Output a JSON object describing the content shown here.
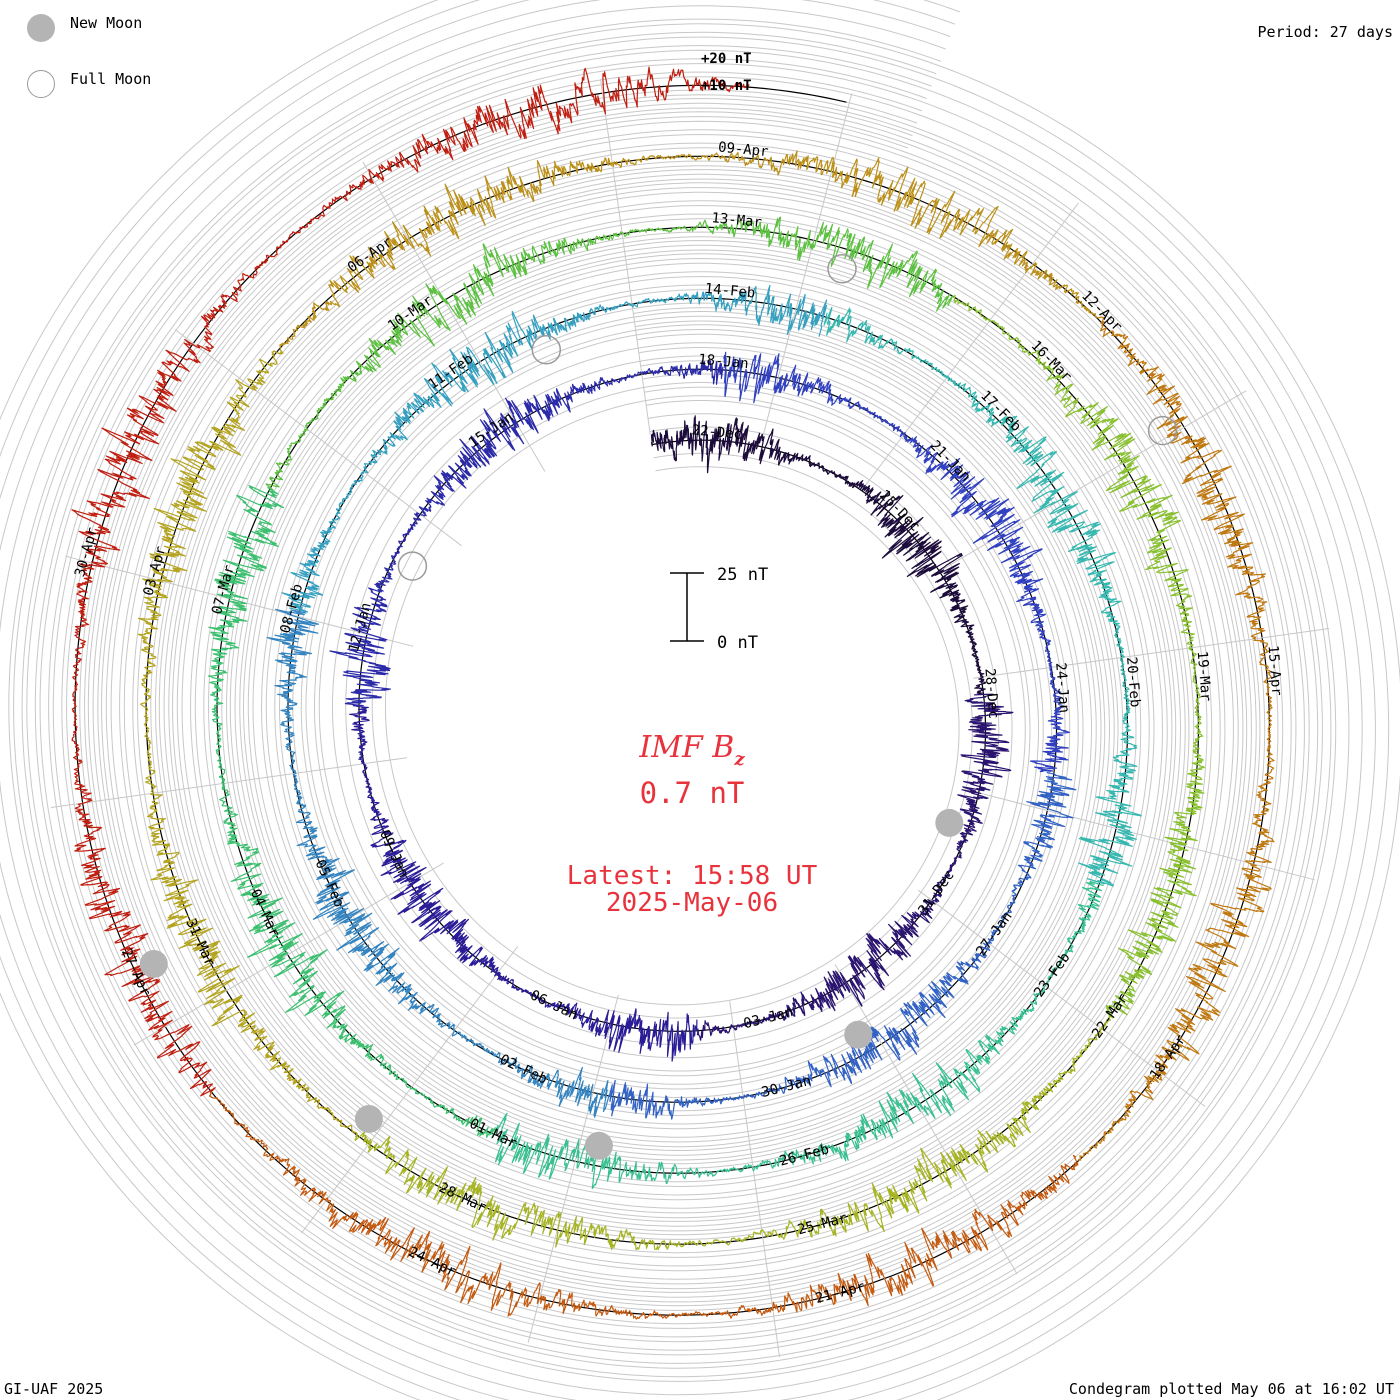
{
  "legend": {
    "new_moon": "New Moon",
    "full_moon": "Full Moon"
  },
  "period_label": "Period: 27 days",
  "credit": "GI-UAF 2025",
  "plotted": "Condegram plotted May 06 at 16:02 UT",
  "center": {
    "quantity": "IMF B",
    "subscript": "z",
    "value": "0.7 nT",
    "latest_line": "Latest: 15:58 UT",
    "latest_date": "2025-May-06",
    "text_color": "#e8323c"
  },
  "scale_bar": {
    "top_label": "25 nT",
    "bottom_label": "0 nT",
    "span_nT": 25
  },
  "outer_labels": [
    "+20 nT",
    "+10 nT"
  ],
  "chart_data": {
    "type": "line",
    "title": "IMF Bz",
    "period_days": 27,
    "start_date": "2024-12-21",
    "end_date": "2025-05-06",
    "units": "nT",
    "grid": true,
    "grid_step_nT": 10,
    "grid_rings_per_turn": 5,
    "spokes": 16,
    "date_labels": [
      {
        "turn": 0,
        "labels": [
          "22-Dec",
          "25-Dec",
          "28-Dec",
          "31-Dec",
          "03-Jan",
          "06-Jan",
          "09-Jan",
          "12-Jan",
          "15-Jan"
        ]
      },
      {
        "turn": 1,
        "labels": [
          "18-Jan",
          "21-Jan",
          "24-Jan",
          "27-Jan",
          "30-Jan",
          "02-Feb",
          "05-Feb",
          "08-Feb",
          "11-Feb"
        ]
      },
      {
        "turn": 2,
        "labels": [
          "14-Feb",
          "17-Feb",
          "20-Feb",
          "23-Feb",
          "26-Feb",
          "01-Mar",
          "04-Mar",
          "07-Mar",
          "10-Mar"
        ]
      },
      {
        "turn": 3,
        "labels": [
          "13-Mar",
          "16-Mar",
          "19-Mar",
          "22-Mar",
          "25-Mar",
          "28-Mar",
          "31-Mar",
          "03-Apr",
          "06-Apr"
        ]
      },
      {
        "turn": 4,
        "labels": [
          "09-Apr",
          "12-Apr",
          "15-Apr",
          "18-Apr",
          "21-Apr",
          "24-Apr",
          "27-Apr",
          "30-Apr"
        ]
      }
    ],
    "moon_phases": [
      {
        "phase": "new",
        "date": "2024-12-30"
      },
      {
        "phase": "full",
        "date": "2025-01-13"
      },
      {
        "phase": "new",
        "date": "2025-01-29"
      },
      {
        "phase": "full",
        "date": "2025-02-12"
      },
      {
        "phase": "new",
        "date": "2025-02-28"
      },
      {
        "phase": "full",
        "date": "2025-03-14"
      },
      {
        "phase": "new",
        "date": "2025-03-29"
      },
      {
        "phase": "full",
        "date": "2025-04-13"
      },
      {
        "phase": "new",
        "date": "2025-04-27"
      }
    ],
    "segments": [
      {
        "from": "2024-12-21",
        "to": "2024-12-28",
        "color": "#1c0c3c"
      },
      {
        "from": "2024-12-28",
        "to": "2025-01-04",
        "color": "#2a1470"
      },
      {
        "from": "2025-01-04",
        "to": "2025-01-11",
        "color": "#2a1c96"
      },
      {
        "from": "2025-01-11",
        "to": "2025-01-18",
        "color": "#2b2aa8"
      },
      {
        "from": "2025-01-18",
        "to": "2025-01-25",
        "color": "#3040c0"
      },
      {
        "from": "2025-01-25",
        "to": "2025-02-01",
        "color": "#3262c4"
      },
      {
        "from": "2025-02-01",
        "to": "2025-02-08",
        "color": "#3384c0"
      },
      {
        "from": "2025-02-08",
        "to": "2025-02-15",
        "color": "#35a0c0"
      },
      {
        "from": "2025-02-15",
        "to": "2025-02-22",
        "color": "#36b8b0"
      },
      {
        "from": "2025-02-22",
        "to": "2025-03-01",
        "color": "#38c090"
      },
      {
        "from": "2025-03-01",
        "to": "2025-03-08",
        "color": "#3cc070"
      },
      {
        "from": "2025-03-08",
        "to": "2025-03-15",
        "color": "#5cc040"
      },
      {
        "from": "2025-03-15",
        "to": "2025-03-22",
        "color": "#88c030"
      },
      {
        "from": "2025-03-22",
        "to": "2025-03-29",
        "color": "#a6b424"
      },
      {
        "from": "2025-03-29",
        "to": "2025-04-05",
        "color": "#b4a420"
      },
      {
        "from": "2025-04-05",
        "to": "2025-04-12",
        "color": "#bc9018"
      },
      {
        "from": "2025-04-12",
        "to": "2025-04-19",
        "color": "#c07810"
      },
      {
        "from": "2025-04-19",
        "to": "2025-04-26",
        "color": "#c45a10"
      },
      {
        "from": "2025-04-26",
        "to": "2025-05-06",
        "color": "#c01e10"
      }
    ],
    "samples": [
      0.7
    ]
  }
}
